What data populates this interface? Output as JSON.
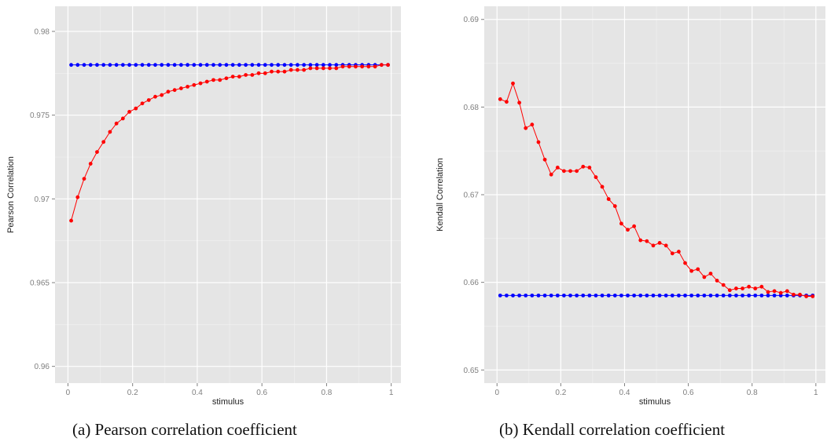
{
  "chart_data": [
    {
      "type": "line",
      "caption": "(a) Pearson correlation coefficient",
      "xlabel": "stimulus",
      "ylabel": "Pearson Correlation",
      "xlim": [
        -0.04,
        1.03
      ],
      "ylim": [
        0.959,
        0.9815
      ],
      "xticks": [
        0,
        0.2,
        0.4,
        0.6,
        0.8,
        1
      ],
      "xtick_labels": [
        "0",
        "0.2",
        "0.4",
        "0.6",
        "0.8",
        "1"
      ],
      "yticks": [
        0.96,
        0.965,
        0.97,
        0.975,
        0.98
      ],
      "ytick_labels": [
        "0.96",
        "0.965",
        "0.97",
        "0.975",
        "0.98"
      ],
      "grid": true,
      "x": [
        0.01,
        0.03,
        0.05,
        0.07,
        0.09,
        0.11,
        0.13,
        0.15,
        0.17,
        0.19,
        0.21,
        0.23,
        0.25,
        0.27,
        0.29,
        0.31,
        0.33,
        0.35,
        0.37,
        0.39,
        0.41,
        0.43,
        0.45,
        0.47,
        0.49,
        0.51,
        0.53,
        0.55,
        0.57,
        0.59,
        0.61,
        0.63,
        0.65,
        0.67,
        0.69,
        0.71,
        0.73,
        0.75,
        0.77,
        0.79,
        0.81,
        0.83,
        0.85,
        0.87,
        0.89,
        0.91,
        0.93,
        0.95,
        0.97,
        0.99
      ],
      "series": [
        {
          "color": "#0000ff",
          "values": [
            0.978,
            0.978,
            0.978,
            0.978,
            0.978,
            0.978,
            0.978,
            0.978,
            0.978,
            0.978,
            0.978,
            0.978,
            0.978,
            0.978,
            0.978,
            0.978,
            0.978,
            0.978,
            0.978,
            0.978,
            0.978,
            0.978,
            0.978,
            0.978,
            0.978,
            0.978,
            0.978,
            0.978,
            0.978,
            0.978,
            0.978,
            0.978,
            0.978,
            0.978,
            0.978,
            0.978,
            0.978,
            0.978,
            0.978,
            0.978,
            0.978,
            0.978,
            0.978,
            0.978,
            0.978,
            0.978,
            0.978,
            0.978,
            0.978,
            0.978
          ]
        },
        {
          "color": "#ff0000",
          "values": [
            0.9687,
            0.9701,
            0.9712,
            0.9721,
            0.9728,
            0.9734,
            0.974,
            0.9745,
            0.9748,
            0.9752,
            0.9754,
            0.9757,
            0.9759,
            0.9761,
            0.9762,
            0.9764,
            0.9765,
            0.9766,
            0.9767,
            0.9768,
            0.9769,
            0.977,
            0.9771,
            0.9771,
            0.9772,
            0.9773,
            0.9773,
            0.9774,
            0.9774,
            0.9775,
            0.9775,
            0.9776,
            0.9776,
            0.9776,
            0.9777,
            0.9777,
            0.9777,
            0.9778,
            0.9778,
            0.9778,
            0.9778,
            0.9778,
            0.9779,
            0.9779,
            0.9779,
            0.9779,
            0.9779,
            0.9779,
            0.978,
            0.978
          ]
        }
      ]
    },
    {
      "type": "line",
      "caption": "(b) Kendall correlation coefficient",
      "xlabel": "stimulus",
      "ylabel": "Kendall Correlation",
      "xlim": [
        -0.04,
        1.03
      ],
      "ylim": [
        0.6485,
        0.6915
      ],
      "xticks": [
        0,
        0.2,
        0.4,
        0.6,
        0.8,
        1
      ],
      "xtick_labels": [
        "0",
        "0.2",
        "0.4",
        "0.6",
        "0.8",
        "1"
      ],
      "yticks": [
        0.65,
        0.66,
        0.67,
        0.68,
        0.69
      ],
      "ytick_labels": [
        "0.65",
        "0.66",
        "0.67",
        "0.68",
        "0.69"
      ],
      "grid": true,
      "x": [
        0.01,
        0.03,
        0.05,
        0.07,
        0.09,
        0.11,
        0.13,
        0.15,
        0.17,
        0.19,
        0.21,
        0.23,
        0.25,
        0.27,
        0.29,
        0.31,
        0.33,
        0.35,
        0.37,
        0.39,
        0.41,
        0.43,
        0.45,
        0.47,
        0.49,
        0.51,
        0.53,
        0.55,
        0.57,
        0.59,
        0.61,
        0.63,
        0.65,
        0.67,
        0.69,
        0.71,
        0.73,
        0.75,
        0.77,
        0.79,
        0.81,
        0.83,
        0.85,
        0.87,
        0.89,
        0.91,
        0.93,
        0.95,
        0.97,
        0.99
      ],
      "series": [
        {
          "color": "#0000ff",
          "values": [
            0.6585,
            0.6585,
            0.6585,
            0.6585,
            0.6585,
            0.6585,
            0.6585,
            0.6585,
            0.6585,
            0.6585,
            0.6585,
            0.6585,
            0.6585,
            0.6585,
            0.6585,
            0.6585,
            0.6585,
            0.6585,
            0.6585,
            0.6585,
            0.6585,
            0.6585,
            0.6585,
            0.6585,
            0.6585,
            0.6585,
            0.6585,
            0.6585,
            0.6585,
            0.6585,
            0.6585,
            0.6585,
            0.6585,
            0.6585,
            0.6585,
            0.6585,
            0.6585,
            0.6585,
            0.6585,
            0.6585,
            0.6585,
            0.6585,
            0.6585,
            0.6585,
            0.6585,
            0.6585,
            0.6585,
            0.6585,
            0.6585,
            0.6585
          ]
        },
        {
          "color": "#ff0000",
          "values": [
            0.6809,
            0.6806,
            0.6827,
            0.6805,
            0.6776,
            0.678,
            0.676,
            0.674,
            0.6723,
            0.6731,
            0.6727,
            0.6727,
            0.6727,
            0.6732,
            0.6731,
            0.672,
            0.6709,
            0.6695,
            0.6687,
            0.6667,
            0.666,
            0.6664,
            0.6648,
            0.6647,
            0.6642,
            0.6645,
            0.6642,
            0.6633,
            0.6635,
            0.6622,
            0.6613,
            0.6615,
            0.6606,
            0.661,
            0.6602,
            0.6597,
            0.6591,
            0.6593,
            0.6593,
            0.6595,
            0.6593,
            0.6595,
            0.6589,
            0.659,
            0.6588,
            0.659,
            0.6586,
            0.6586,
            0.6584,
            0.6584
          ]
        }
      ]
    }
  ]
}
